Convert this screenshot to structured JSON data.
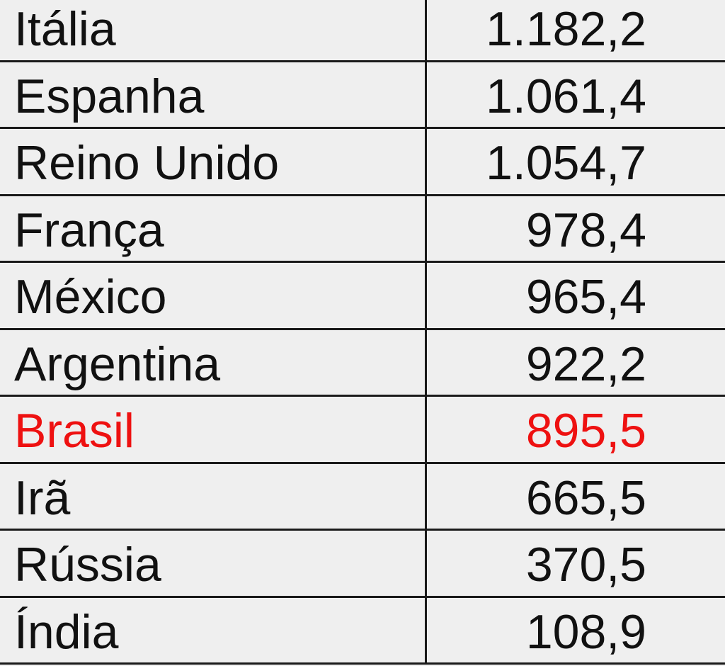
{
  "table": {
    "highlight_color": "#ee1111",
    "rows": [
      {
        "country": "Itália",
        "value": "1.182,2",
        "highlight": false
      },
      {
        "country": "Espanha",
        "value": "1.061,4",
        "highlight": false
      },
      {
        "country": "Reino Unido",
        "value": "1.054,7",
        "highlight": false
      },
      {
        "country": "França",
        "value": "978,4",
        "highlight": false
      },
      {
        "country": "México",
        "value": "965,4",
        "highlight": false
      },
      {
        "country": "Argentina",
        "value": "922,2",
        "highlight": false
      },
      {
        "country": "Brasil",
        "value": "895,5",
        "highlight": true
      },
      {
        "country": "Irã",
        "value": "665,5",
        "highlight": false
      },
      {
        "country": "Rússia",
        "value": "370,5",
        "highlight": false
      },
      {
        "country": "Índia",
        "value": "108,9",
        "highlight": false
      }
    ]
  }
}
